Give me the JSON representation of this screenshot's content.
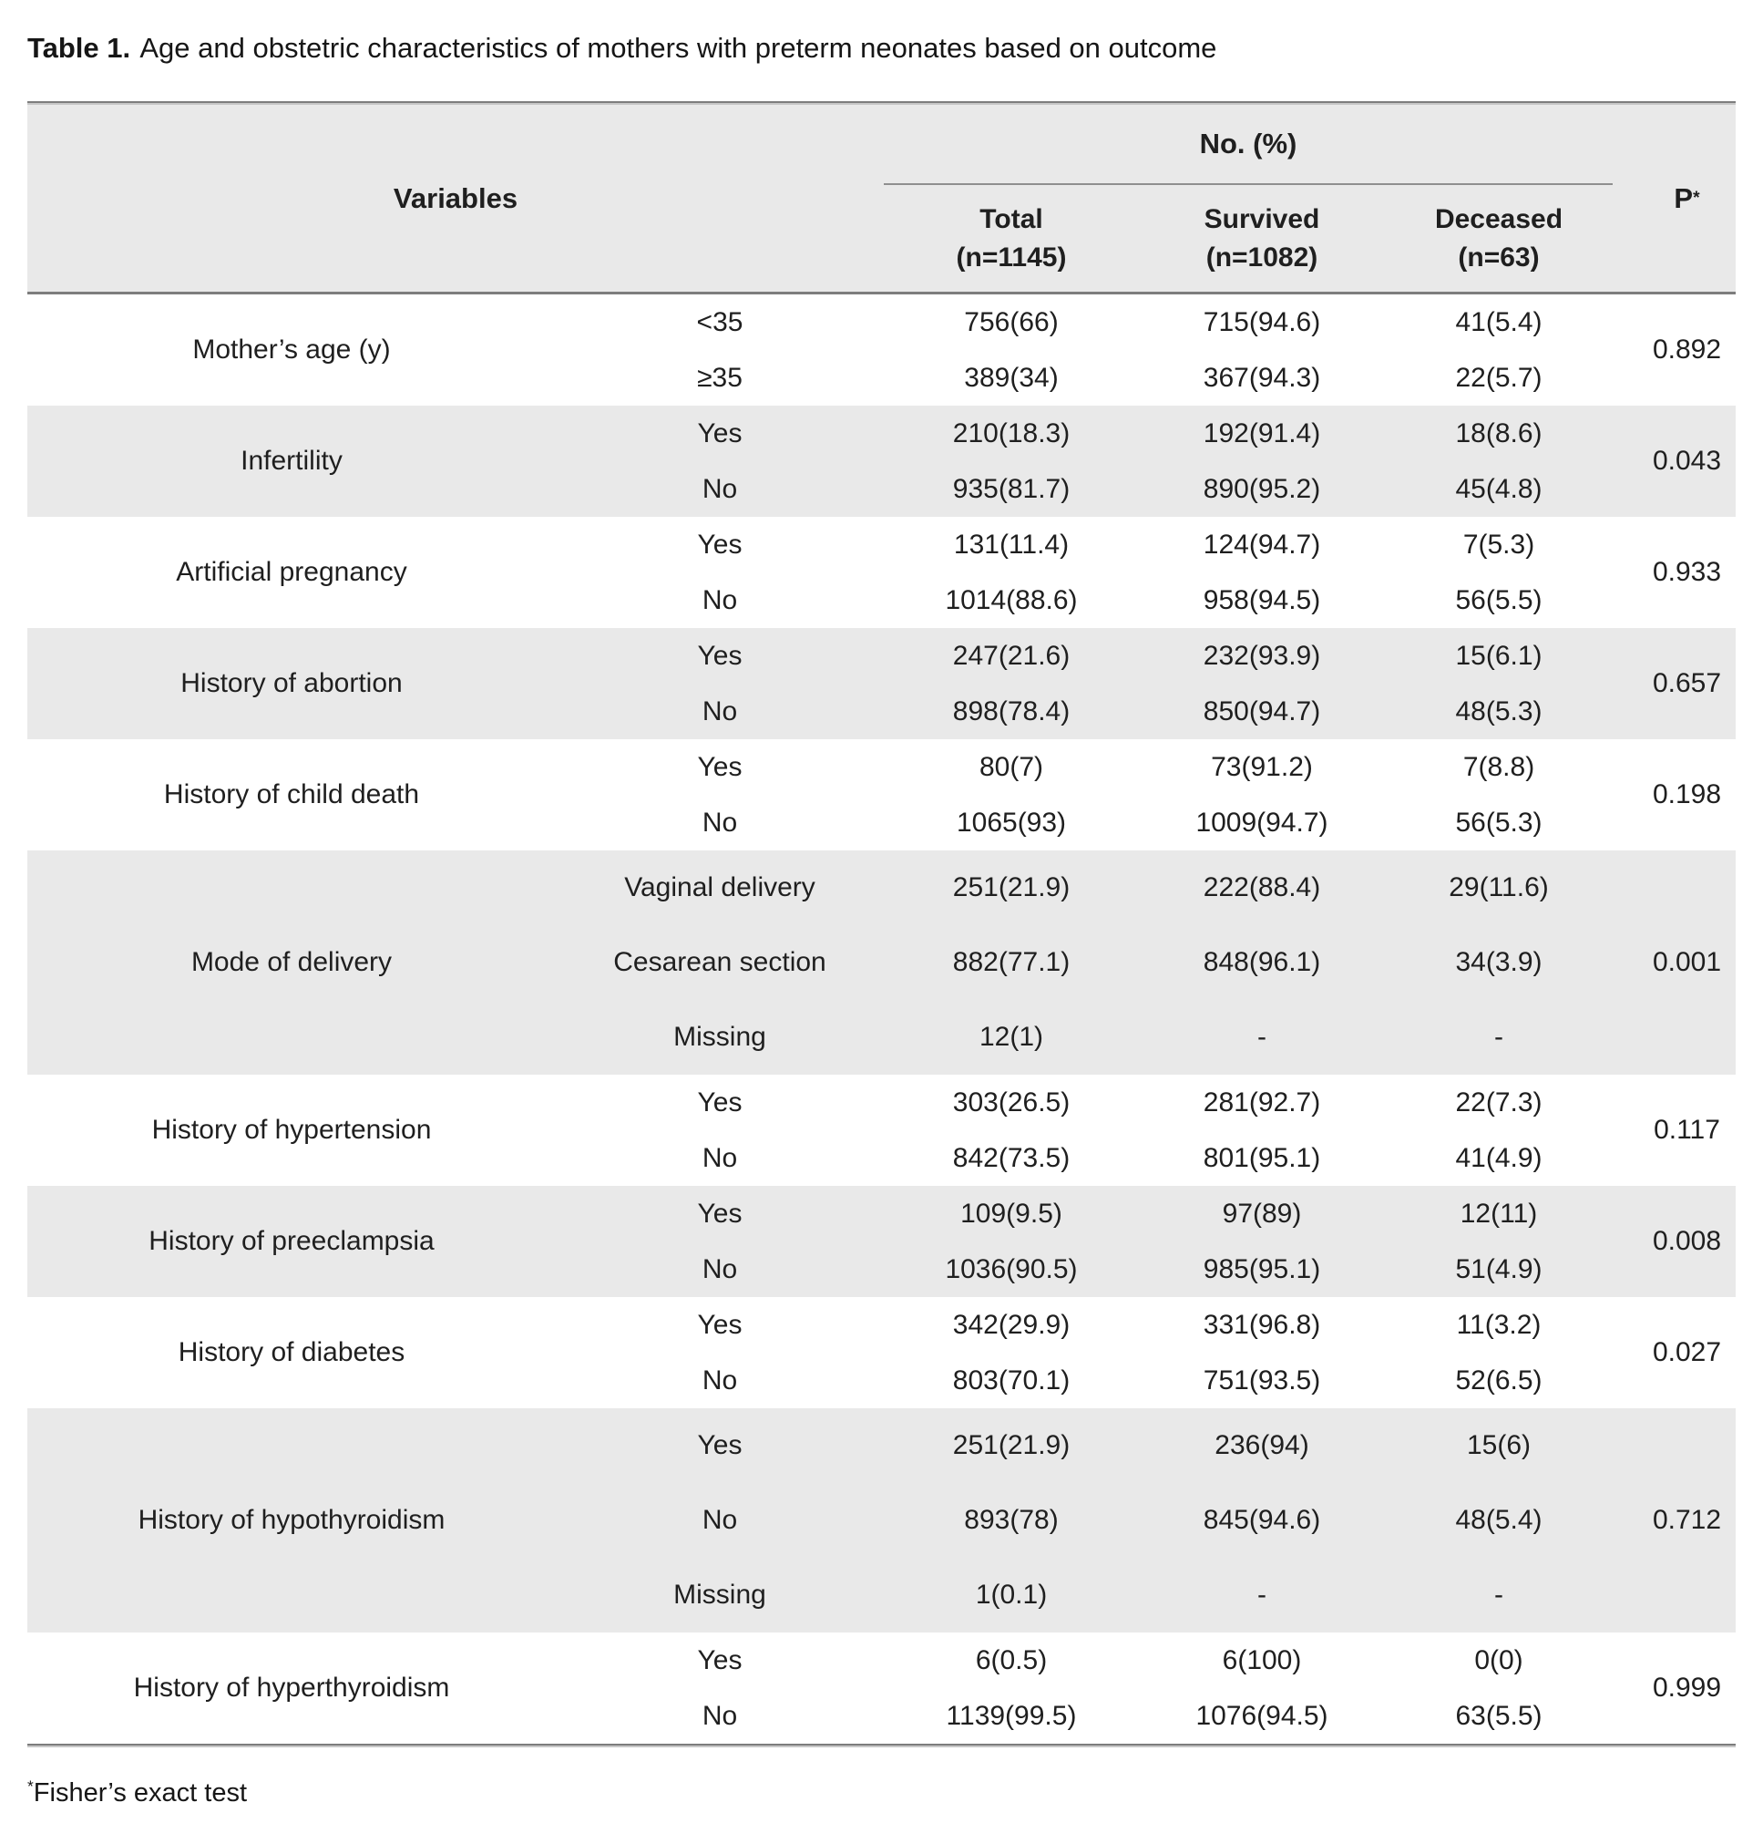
{
  "caption": {
    "label": "Table 1.",
    "text": "Age and obstetric characteristics of mothers with preterm neonates based on outcome"
  },
  "header": {
    "variables": "Variables",
    "no_pct": "No. (%)",
    "columns": [
      {
        "name": "Total",
        "n": "(n=1145)"
      },
      {
        "name": "Survived",
        "n": "(n=1082)"
      },
      {
        "name": "Deceased",
        "n": "(n=63)"
      }
    ],
    "p": "P",
    "p_sup": "*"
  },
  "groups": [
    {
      "variable": "Mother’s age (y)",
      "p": "0.892",
      "rows": [
        {
          "level": "<35",
          "total": "756(66)",
          "survived": "715(94.6)",
          "deceased": "41(5.4)"
        },
        {
          "level": "≥35",
          "total": "389(34)",
          "survived": "367(94.3)",
          "deceased": "22(5.7)"
        }
      ]
    },
    {
      "variable": "Infertility",
      "p": "0.043",
      "rows": [
        {
          "level": "Yes",
          "total": "210(18.3)",
          "survived": "192(91.4)",
          "deceased": "18(8.6)"
        },
        {
          "level": "No",
          "total": "935(81.7)",
          "survived": "890(95.2)",
          "deceased": "45(4.8)"
        }
      ]
    },
    {
      "variable": "Artificial pregnancy",
      "p": "0.933",
      "rows": [
        {
          "level": "Yes",
          "total": "131(11.4)",
          "survived": "124(94.7)",
          "deceased": "7(5.3)"
        },
        {
          "level": "No",
          "total": "1014(88.6)",
          "survived": "958(94.5)",
          "deceased": "56(5.5)"
        }
      ]
    },
    {
      "variable": "History of abortion",
      "p": "0.657",
      "rows": [
        {
          "level": "Yes",
          "total": "247(21.6)",
          "survived": "232(93.9)",
          "deceased": "15(6.1)"
        },
        {
          "level": "No",
          "total": "898(78.4)",
          "survived": "850(94.7)",
          "deceased": "48(5.3)"
        }
      ]
    },
    {
      "variable": "History of child death",
      "p": "0.198",
      "rows": [
        {
          "level": "Yes",
          "total": "80(7)",
          "survived": "73(91.2)",
          "deceased": "7(8.8)"
        },
        {
          "level": "No",
          "total": "1065(93)",
          "survived": "1009(94.7)",
          "deceased": "56(5.3)"
        }
      ]
    },
    {
      "variable": "Mode of delivery",
      "p": "0.001",
      "rows": [
        {
          "level": "Vaginal delivery",
          "total": "251(21.9)",
          "survived": "222(88.4)",
          "deceased": "29(11.6)"
        },
        {
          "level": "Cesarean section",
          "total": "882(77.1)",
          "survived": "848(96.1)",
          "deceased": "34(3.9)"
        },
        {
          "level": "Missing",
          "total": "12(1)",
          "survived": "-",
          "deceased": "-"
        }
      ]
    },
    {
      "variable": "History of hypertension",
      "p": "0.117",
      "rows": [
        {
          "level": "Yes",
          "total": "303(26.5)",
          "survived": "281(92.7)",
          "deceased": "22(7.3)"
        },
        {
          "level": "No",
          "total": "842(73.5)",
          "survived": "801(95.1)",
          "deceased": "41(4.9)"
        }
      ]
    },
    {
      "variable": "History of preeclampsia",
      "p": "0.008",
      "rows": [
        {
          "level": "Yes",
          "total": "109(9.5)",
          "survived": "97(89)",
          "deceased": "12(11)"
        },
        {
          "level": "No",
          "total": "1036(90.5)",
          "survived": "985(95.1)",
          "deceased": "51(4.9)"
        }
      ]
    },
    {
      "variable": "History of diabetes",
      "p": "0.027",
      "rows": [
        {
          "level": "Yes",
          "total": "342(29.9)",
          "survived": "331(96.8)",
          "deceased": "11(3.2)"
        },
        {
          "level": "No",
          "total": "803(70.1)",
          "survived": "751(93.5)",
          "deceased": "52(6.5)"
        }
      ]
    },
    {
      "variable": "History of hypothyroidism",
      "p": "0.712",
      "rows": [
        {
          "level": "Yes",
          "total": "251(21.9)",
          "survived": "236(94)",
          "deceased": "15(6)"
        },
        {
          "level": "No",
          "total": "893(78)",
          "survived": "845(94.6)",
          "deceased": "48(5.4)"
        },
        {
          "level": "Missing",
          "total": "1(0.1)",
          "survived": "-",
          "deceased": "-"
        }
      ]
    },
    {
      "variable": "History of hyperthyroidism",
      "p": "0.999",
      "rows": [
        {
          "level": "Yes",
          "total": "6(0.5)",
          "survived": "6(100)",
          "deceased": "0(0)"
        },
        {
          "level": "No",
          "total": "1139(99.5)",
          "survived": "1076(94.5)",
          "deceased": "63(5.5)"
        }
      ]
    }
  ],
  "footnote": {
    "sup": "*",
    "text": "Fisher’s exact test"
  },
  "colors": {
    "stripe": "#e9e9e9",
    "rule_dark": "#7d7d7d",
    "rule_light": "#c7c7c7",
    "text": "#1f1f1f"
  }
}
